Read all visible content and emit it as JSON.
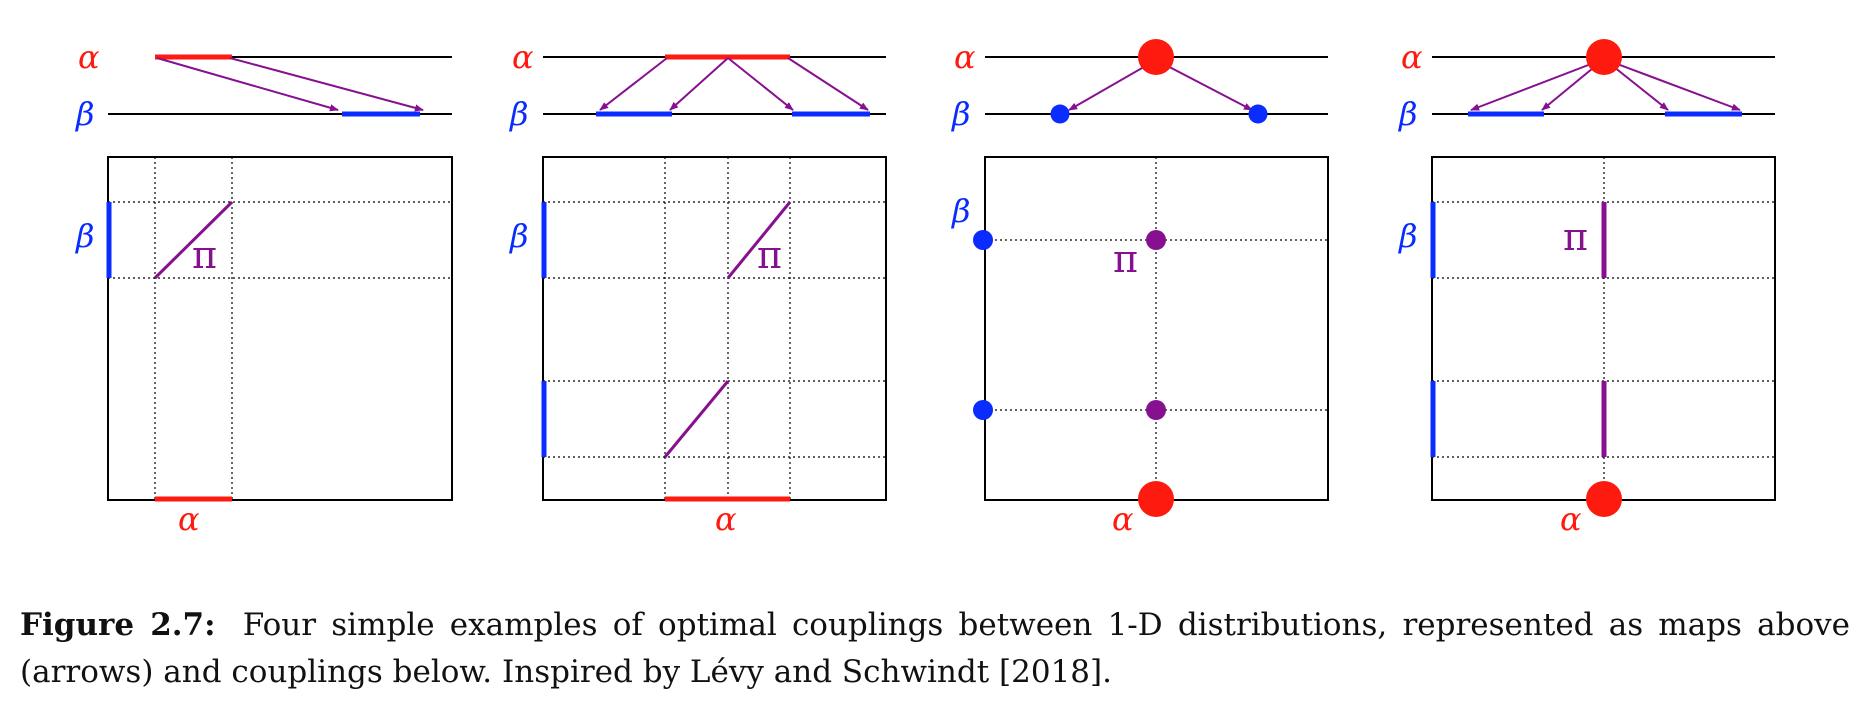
{
  "symbols": {
    "alpha": "α",
    "beta": "β",
    "pi": "π"
  },
  "colors": {
    "alpha": "#ff1a10",
    "beta": "#0a2cff",
    "coupling": "#86108f",
    "axis": "#000000"
  },
  "panels": [
    {
      "id": 1,
      "source": "interval",
      "target": "interval",
      "target_parts": 1
    },
    {
      "id": 2,
      "source": "interval",
      "target": "two intervals",
      "target_parts": 2
    },
    {
      "id": 3,
      "source": "point",
      "target": "two points",
      "target_parts": 2
    },
    {
      "id": 4,
      "source": "point",
      "target": "two intervals",
      "target_parts": 2
    }
  ],
  "caption": {
    "label": "Figure 2.7:",
    "text": "Four simple examples of optimal couplings between 1-D distributions, represented as maps above (arrows) and couplings below. Inspired by Lévy and Schwindt [2018]."
  }
}
